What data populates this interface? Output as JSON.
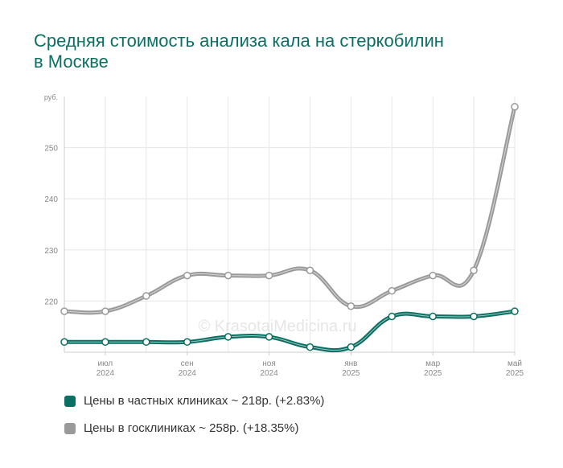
{
  "title": "Средняя стоимость анализа кала на стеркобилин в Москве",
  "watermark": "© KrasotaiMedicina.ru",
  "colors": {
    "private": "#0b6f63",
    "state": "#9a9a9a",
    "grid": "#e6e6e6",
    "axis_text": "#888888"
  },
  "chart_data": {
    "type": "line",
    "y_unit": "руб.",
    "ylim": [
      210,
      260
    ],
    "y_ticks": [
      220,
      230,
      240,
      250
    ],
    "x_ticks": [
      {
        "month": "июл",
        "year": "2024"
      },
      {
        "month": "сен",
        "year": "2024"
      },
      {
        "month": "ноя",
        "year": "2024"
      },
      {
        "month": "янв",
        "year": "2025"
      },
      {
        "month": "мар",
        "year": "2025"
      },
      {
        "month": "май",
        "year": "2025"
      }
    ],
    "x_dates": [
      "2024-06",
      "2024-07",
      "2024-08",
      "2024-09",
      "2024-10",
      "2024-11",
      "2024-12",
      "2025-01",
      "2025-02",
      "2025-03",
      "2025-04",
      "2025-05"
    ],
    "grid": true,
    "series": [
      {
        "name": "Цены в частных клиниках ~ 218р. (+2.83%)",
        "color_key": "private",
        "values": [
          212,
          212,
          212,
          212,
          213,
          213,
          211,
          211,
          217,
          217,
          217,
          218
        ]
      },
      {
        "name": "Цены в госклиниках ~ 258р. (+18.35%)",
        "color_key": "state",
        "values": [
          218,
          218,
          221,
          225,
          225,
          225,
          226,
          219,
          222,
          225,
          226,
          258
        ]
      }
    ]
  }
}
